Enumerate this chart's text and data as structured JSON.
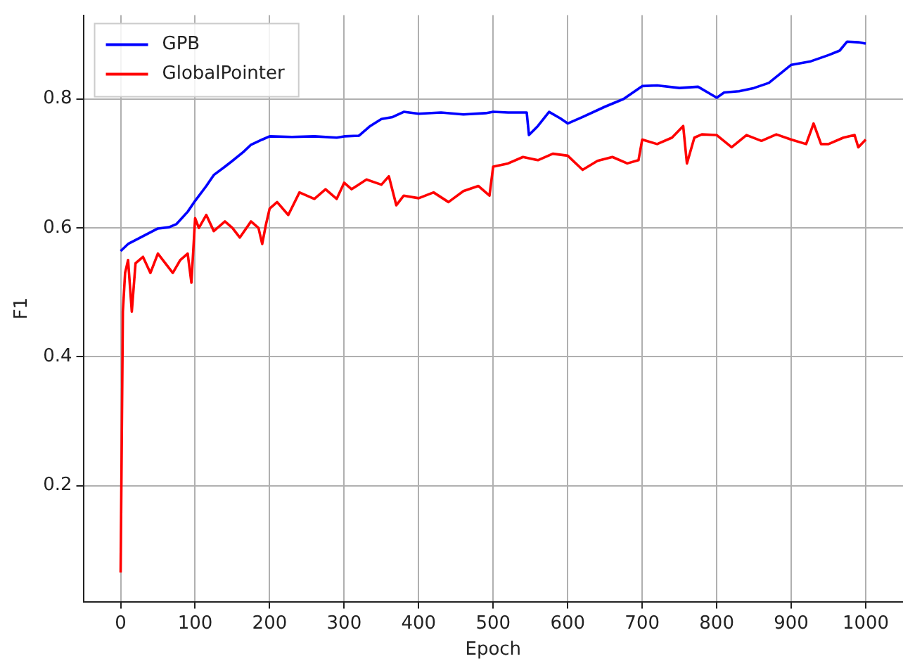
{
  "chart_data": {
    "type": "line",
    "xlabel": "Epoch",
    "ylabel": "F1",
    "xlim": [
      -50,
      1050
    ],
    "xticks": [
      0,
      100,
      200,
      300,
      400,
      500,
      600,
      700,
      800,
      900,
      1000
    ],
    "ylim": [
      0.02,
      0.93
    ],
    "yticks": [
      0.2,
      0.4,
      0.6,
      0.8
    ],
    "grid": true,
    "legend": "top left",
    "marker": "none",
    "line_style": "solid",
    "series": [
      {
        "name": "GPB",
        "color": "#0000ff",
        "x": [
          0,
          10,
          25,
          40,
          50,
          65,
          75,
          90,
          100,
          115,
          125,
          140,
          150,
          165,
          175,
          190,
          200,
          230,
          260,
          290,
          300,
          320,
          335,
          350,
          365,
          380,
          400,
          430,
          460,
          490,
          500,
          520,
          545,
          548,
          560,
          575,
          590,
          600,
          620,
          650,
          675,
          700,
          720,
          750,
          775,
          800,
          810,
          830,
          850,
          870,
          900,
          925,
          950,
          965,
          975,
          990,
          1000
        ],
        "values": [
          0.564,
          0.575,
          0.584,
          0.593,
          0.599,
          0.601,
          0.606,
          0.625,
          0.642,
          0.665,
          0.682,
          0.695,
          0.704,
          0.718,
          0.729,
          0.737,
          0.742,
          0.741,
          0.742,
          0.74,
          0.742,
          0.743,
          0.758,
          0.769,
          0.772,
          0.78,
          0.777,
          0.779,
          0.776,
          0.778,
          0.78,
          0.779,
          0.779,
          0.744,
          0.758,
          0.78,
          0.77,
          0.762,
          0.772,
          0.788,
          0.8,
          0.82,
          0.821,
          0.817,
          0.819,
          0.802,
          0.81,
          0.812,
          0.817,
          0.825,
          0.853,
          0.858,
          0.868,
          0.875,
          0.889,
          0.888,
          0.886
        ]
      },
      {
        "name": "GlobalPointer",
        "color": "#ff0000",
        "x": [
          0,
          3,
          6,
          10,
          15,
          20,
          30,
          40,
          50,
          60,
          70,
          80,
          90,
          95,
          100,
          105,
          115,
          125,
          140,
          150,
          160,
          175,
          185,
          190,
          195,
          200,
          210,
          225,
          240,
          260,
          275,
          290,
          300,
          310,
          330,
          350,
          360,
          370,
          380,
          400,
          420,
          440,
          460,
          480,
          495,
          500,
          520,
          540,
          560,
          580,
          600,
          620,
          640,
          660,
          680,
          695,
          700,
          720,
          740,
          755,
          760,
          770,
          780,
          800,
          820,
          840,
          860,
          880,
          900,
          920,
          930,
          940,
          950,
          970,
          985,
          990,
          1000
        ],
        "values": [
          0.065,
          0.47,
          0.53,
          0.55,
          0.47,
          0.545,
          0.555,
          0.53,
          0.56,
          0.545,
          0.53,
          0.55,
          0.56,
          0.515,
          0.615,
          0.6,
          0.62,
          0.595,
          0.61,
          0.6,
          0.585,
          0.61,
          0.6,
          0.575,
          0.605,
          0.63,
          0.64,
          0.62,
          0.655,
          0.645,
          0.66,
          0.645,
          0.67,
          0.66,
          0.675,
          0.667,
          0.68,
          0.635,
          0.65,
          0.646,
          0.655,
          0.64,
          0.657,
          0.665,
          0.65,
          0.695,
          0.7,
          0.71,
          0.705,
          0.715,
          0.712,
          0.69,
          0.704,
          0.71,
          0.7,
          0.705,
          0.737,
          0.73,
          0.74,
          0.758,
          0.7,
          0.74,
          0.745,
          0.744,
          0.725,
          0.744,
          0.735,
          0.745,
          0.737,
          0.73,
          0.762,
          0.73,
          0.73,
          0.74,
          0.744,
          0.725,
          0.737
        ]
      }
    ]
  }
}
